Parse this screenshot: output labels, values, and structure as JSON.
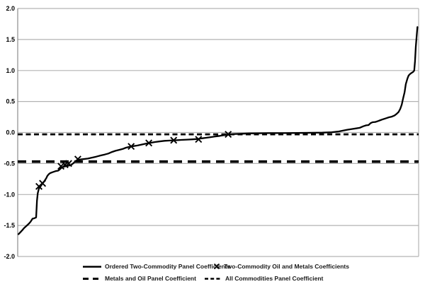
{
  "colors": {
    "line": "#000000",
    "grid": "#b3b3b3",
    "axis": "#8c8c8c",
    "text": "#000000",
    "background": "#ffffff"
  },
  "chart_data": {
    "type": "line",
    "title": "",
    "xlabel": "",
    "ylabel": "",
    "ylim": [
      -2.0,
      2.0
    ],
    "y_ticks": [
      "2.0",
      "1.5",
      "1.0",
      "0.5",
      "0.0",
      "-0.5",
      "-1.0",
      "-1.5",
      "-2.0"
    ],
    "x_axis": "ordered coefficient rank (unlabeled, 0-100% of axis)",
    "grid": "horizontal",
    "legend_position": "bottom",
    "series": [
      {
        "name": "Ordered Two-Commodity Panel Coefficients",
        "style": "solid",
        "points": [
          [
            0.2,
            -1.64
          ],
          [
            0.5,
            -1.62
          ],
          [
            1.1,
            -1.58
          ],
          [
            1.6,
            -1.54
          ],
          [
            2.3,
            -1.5
          ],
          [
            2.8,
            -1.47
          ],
          [
            3.2,
            -1.44
          ],
          [
            3.5,
            -1.41
          ],
          [
            3.7,
            -1.39
          ],
          [
            4.1,
            -1.385
          ],
          [
            4.6,
            -1.37
          ],
          [
            4.8,
            -1.1
          ],
          [
            5.0,
            -0.98
          ],
          [
            5.3,
            -0.9
          ],
          [
            5.8,
            -0.86
          ],
          [
            6.2,
            -0.82
          ],
          [
            6.7,
            -0.78
          ],
          [
            7.1,
            -0.74
          ],
          [
            7.4,
            -0.7
          ],
          [
            7.8,
            -0.67
          ],
          [
            8.1,
            -0.655
          ],
          [
            8.7,
            -0.64
          ],
          [
            9.4,
            -0.625
          ],
          [
            10.1,
            -0.615
          ],
          [
            10.4,
            -0.6
          ],
          [
            10.8,
            -0.575
          ],
          [
            11.3,
            -0.555
          ],
          [
            12.0,
            -0.545
          ],
          [
            12.7,
            -0.535
          ],
          [
            13.3,
            -0.525
          ],
          [
            13.8,
            -0.5
          ],
          [
            14.3,
            -0.47
          ],
          [
            14.8,
            -0.445
          ],
          [
            15.6,
            -0.435
          ],
          [
            16.4,
            -0.43
          ],
          [
            17.5,
            -0.42
          ],
          [
            18.6,
            -0.405
          ],
          [
            19.6,
            -0.39
          ],
          [
            20.7,
            -0.37
          ],
          [
            21.7,
            -0.355
          ],
          [
            22.6,
            -0.34
          ],
          [
            23.5,
            -0.315
          ],
          [
            24.4,
            -0.295
          ],
          [
            25.3,
            -0.28
          ],
          [
            26.2,
            -0.265
          ],
          [
            27.0,
            -0.245
          ],
          [
            27.9,
            -0.23
          ],
          [
            28.8,
            -0.22
          ],
          [
            29.9,
            -0.21
          ],
          [
            30.9,
            -0.195
          ],
          [
            32.0,
            -0.18
          ],
          [
            32.9,
            -0.17
          ],
          [
            34.1,
            -0.155
          ],
          [
            35.3,
            -0.145
          ],
          [
            36.6,
            -0.135
          ],
          [
            38.0,
            -0.13
          ],
          [
            39.4,
            -0.125
          ],
          [
            40.8,
            -0.12
          ],
          [
            42.2,
            -0.115
          ],
          [
            43.6,
            -0.11
          ],
          [
            44.9,
            -0.105
          ],
          [
            45.9,
            -0.095
          ],
          [
            47.0,
            -0.085
          ],
          [
            48.1,
            -0.075
          ],
          [
            49.1,
            -0.065
          ],
          [
            50.4,
            -0.055
          ],
          [
            51.4,
            -0.045
          ],
          [
            52.5,
            -0.035
          ],
          [
            53.9,
            -0.025
          ],
          [
            55.7,
            -0.02
          ],
          [
            57.8,
            -0.015
          ],
          [
            60.1,
            -0.012
          ],
          [
            62.7,
            -0.01
          ],
          [
            66.3,
            -0.01
          ],
          [
            69.8,
            -0.008
          ],
          [
            73.3,
            -0.005
          ],
          [
            76.0,
            -0.002
          ],
          [
            78.3,
            0.003
          ],
          [
            79.9,
            0.015
          ],
          [
            81.1,
            0.03
          ],
          [
            82.2,
            0.045
          ],
          [
            83.2,
            0.055
          ],
          [
            84.3,
            0.065
          ],
          [
            85.3,
            0.075
          ],
          [
            86.2,
            0.1
          ],
          [
            86.9,
            0.115
          ],
          [
            87.5,
            0.12
          ],
          [
            88.0,
            0.15
          ],
          [
            88.5,
            0.165
          ],
          [
            89.2,
            0.17
          ],
          [
            89.9,
            0.185
          ],
          [
            90.5,
            0.2
          ],
          [
            91.2,
            0.215
          ],
          [
            91.9,
            0.23
          ],
          [
            92.6,
            0.245
          ],
          [
            93.3,
            0.255
          ],
          [
            94.0,
            0.275
          ],
          [
            94.5,
            0.3
          ],
          [
            95.0,
            0.33
          ],
          [
            95.4,
            0.38
          ],
          [
            95.8,
            0.45
          ],
          [
            96.1,
            0.54
          ],
          [
            96.5,
            0.65
          ],
          [
            96.8,
            0.78
          ],
          [
            97.2,
            0.87
          ],
          [
            97.5,
            0.92
          ],
          [
            97.9,
            0.945
          ],
          [
            98.2,
            0.96
          ],
          [
            98.6,
            0.975
          ],
          [
            98.9,
            1.0
          ],
          [
            99.1,
            1.15
          ],
          [
            99.3,
            1.38
          ],
          [
            99.5,
            1.55
          ],
          [
            99.7,
            1.7
          ]
        ]
      },
      {
        "name": "Two-Commodity Oil and Metals Coefficients",
        "style": "x-marker",
        "points": [
          [
            5.3,
            -0.87
          ],
          [
            6.2,
            -0.82
          ],
          [
            10.8,
            -0.545
          ],
          [
            11.8,
            -0.52
          ],
          [
            12.7,
            -0.5
          ],
          [
            15.0,
            -0.43
          ],
          [
            28.3,
            -0.225
          ],
          [
            32.7,
            -0.17
          ],
          [
            38.9,
            -0.125
          ],
          [
            45.1,
            -0.11
          ],
          [
            52.5,
            -0.03
          ]
        ]
      },
      {
        "name": "Metals and Oil Panel Coefficient",
        "style": "long-dash-hline",
        "value": -0.47
      },
      {
        "name": "All Commodities Panel Coefficient",
        "style": "short-dash-hline",
        "value": -0.03
      }
    ],
    "legend": {
      "items": [
        {
          "label": "Ordered Two-Commodity Panel Coefficients",
          "style": "solid"
        },
        {
          "label": "Two-Commodity Oil and Metals Coefficients",
          "style": "x-marker"
        },
        {
          "label": "Metals and Oil Panel Coefficient",
          "style": "long-dash"
        },
        {
          "label": "All Commodities Panel Coefficient",
          "style": "short-dash"
        }
      ]
    }
  }
}
